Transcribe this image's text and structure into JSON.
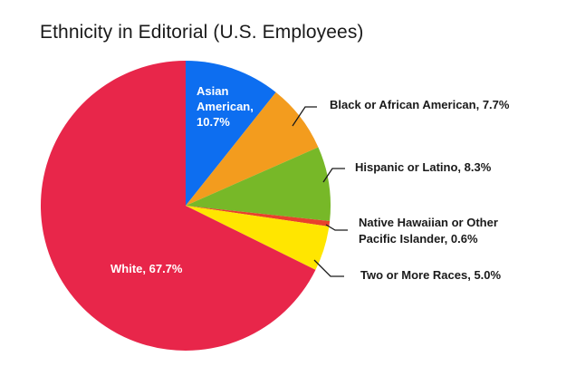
{
  "chart_data": {
    "type": "pie",
    "title": "Ethnicity in Editorial (U.S. Employees)",
    "start_angle_deg": 0,
    "direction": "clockwise",
    "slices": [
      {
        "label": "Asian American, 10.7%",
        "lines": [
          "Asian",
          "American,",
          "10.7%"
        ],
        "value": 10.7,
        "color": "#0D6EF0",
        "label_position": "inside"
      },
      {
        "label": "Black or African American, 7.7%",
        "lines": [
          "Black or African American, 7.7%"
        ],
        "value": 7.7,
        "color": "#F39C1E",
        "label_position": "outside"
      },
      {
        "label": "Hispanic or Latino, 8.3%",
        "lines": [
          "Hispanic or Latino, 8.3%"
        ],
        "value": 8.3,
        "color": "#77B828",
        "label_position": "outside"
      },
      {
        "label": "Native Hawaiian or Other Pacific Islander, 0.6%",
        "lines": [
          "Native Hawaiian or Other",
          "Pacific Islander, 0.6%"
        ],
        "value": 0.6,
        "color": "#E8412C",
        "label_position": "outside"
      },
      {
        "label": "Two or More Races, 5.0%",
        "lines": [
          "Two or More Races, 5.0%"
        ],
        "value": 5.0,
        "color": "#FFE600",
        "label_position": "outside"
      },
      {
        "label": "White, 67.7%",
        "lines": [
          "White, 67.7%"
        ],
        "value": 67.7,
        "color": "#E8264A",
        "label_position": "inside"
      }
    ]
  }
}
